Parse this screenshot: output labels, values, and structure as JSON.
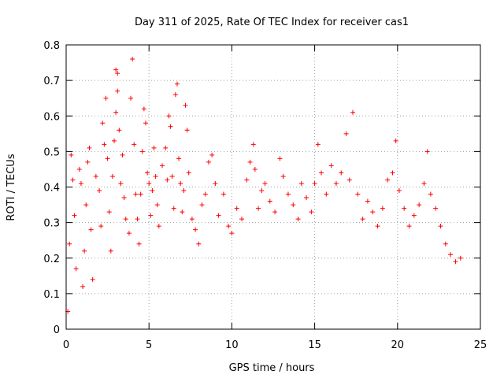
{
  "chart_data": {
    "type": "scatter",
    "title": "Day 311 of 2025, Rate Of TEC Index for receiver cas1",
    "xlabel": "GPS time / hours",
    "ylabel": "ROTI / TECUs",
    "xlim": [
      0,
      25
    ],
    "ylim": [
      0,
      0.8
    ],
    "xticks": [
      0,
      5,
      10,
      15,
      20,
      25
    ],
    "xtick_labels": [
      "0",
      "5",
      "10",
      "15",
      "20",
      "25"
    ],
    "yticks": [
      0,
      0.1,
      0.2,
      0.3,
      0.4,
      0.5,
      0.6,
      0.7,
      0.8
    ],
    "ytick_labels": [
      "0",
      "0.1",
      "0.2",
      "0.3",
      "0.4",
      "0.5",
      "0.6",
      "0.7",
      "0.8"
    ],
    "grid": true,
    "marker": "+",
    "color": "#ff0000",
    "series": [
      {
        "points": [
          [
            0.1,
            0.05
          ],
          [
            0.2,
            0.24
          ],
          [
            0.3,
            0.49
          ],
          [
            0.4,
            0.42
          ],
          [
            0.5,
            0.32
          ],
          [
            0.6,
            0.17
          ],
          [
            0.8,
            0.45
          ],
          [
            0.9,
            0.41
          ],
          [
            1.0,
            0.12
          ],
          [
            1.1,
            0.22
          ],
          [
            1.2,
            0.35
          ],
          [
            1.3,
            0.47
          ],
          [
            1.4,
            0.51
          ],
          [
            1.5,
            0.28
          ],
          [
            1.6,
            0.14
          ],
          [
            1.8,
            0.43
          ],
          [
            2.0,
            0.39
          ],
          [
            2.1,
            0.29
          ],
          [
            2.2,
            0.58
          ],
          [
            2.3,
            0.52
          ],
          [
            2.4,
            0.65
          ],
          [
            2.5,
            0.48
          ],
          [
            2.6,
            0.33
          ],
          [
            2.7,
            0.22
          ],
          [
            2.8,
            0.43
          ],
          [
            2.9,
            0.53
          ],
          [
            3.0,
            0.61
          ],
          [
            3.0,
            0.73
          ],
          [
            3.1,
            0.72
          ],
          [
            3.1,
            0.67
          ],
          [
            3.2,
            0.56
          ],
          [
            3.3,
            0.41
          ],
          [
            3.4,
            0.49
          ],
          [
            3.5,
            0.37
          ],
          [
            3.6,
            0.31
          ],
          [
            3.8,
            0.27
          ],
          [
            3.9,
            0.65
          ],
          [
            4.0,
            0.76
          ],
          [
            4.1,
            0.52
          ],
          [
            4.2,
            0.38
          ],
          [
            4.3,
            0.31
          ],
          [
            4.4,
            0.24
          ],
          [
            4.5,
            0.38
          ],
          [
            4.6,
            0.5
          ],
          [
            4.7,
            0.62
          ],
          [
            4.8,
            0.58
          ],
          [
            4.9,
            0.44
          ],
          [
            5.0,
            0.41
          ],
          [
            5.1,
            0.32
          ],
          [
            5.2,
            0.39
          ],
          [
            5.3,
            0.51
          ],
          [
            5.4,
            0.43
          ],
          [
            5.5,
            0.35
          ],
          [
            5.6,
            0.29
          ],
          [
            5.8,
            0.46
          ],
          [
            6.0,
            0.51
          ],
          [
            6.1,
            0.42
          ],
          [
            6.2,
            0.6
          ],
          [
            6.3,
            0.57
          ],
          [
            6.4,
            0.43
          ],
          [
            6.5,
            0.34
          ],
          [
            6.6,
            0.66
          ],
          [
            6.7,
            0.69
          ],
          [
            6.8,
            0.48
          ],
          [
            6.9,
            0.41
          ],
          [
            7.0,
            0.33
          ],
          [
            7.1,
            0.39
          ],
          [
            7.2,
            0.63
          ],
          [
            7.3,
            0.56
          ],
          [
            7.4,
            0.44
          ],
          [
            7.6,
            0.31
          ],
          [
            7.8,
            0.28
          ],
          [
            8.0,
            0.24
          ],
          [
            8.2,
            0.35
          ],
          [
            8.4,
            0.38
          ],
          [
            8.6,
            0.47
          ],
          [
            8.8,
            0.49
          ],
          [
            9.0,
            0.41
          ],
          [
            9.2,
            0.32
          ],
          [
            9.5,
            0.38
          ],
          [
            9.8,
            0.29
          ],
          [
            10.0,
            0.27
          ],
          [
            10.3,
            0.34
          ],
          [
            10.6,
            0.31
          ],
          [
            10.9,
            0.42
          ],
          [
            11.1,
            0.47
          ],
          [
            11.3,
            0.52
          ],
          [
            11.4,
            0.45
          ],
          [
            11.6,
            0.34
          ],
          [
            11.8,
            0.39
          ],
          [
            12.0,
            0.41
          ],
          [
            12.3,
            0.36
          ],
          [
            12.6,
            0.33
          ],
          [
            12.9,
            0.48
          ],
          [
            13.1,
            0.43
          ],
          [
            13.4,
            0.38
          ],
          [
            13.7,
            0.35
          ],
          [
            14.0,
            0.31
          ],
          [
            14.2,
            0.41
          ],
          [
            14.5,
            0.37
          ],
          [
            14.8,
            0.33
          ],
          [
            15.0,
            0.41
          ],
          [
            15.2,
            0.52
          ],
          [
            15.4,
            0.44
          ],
          [
            15.7,
            0.38
          ],
          [
            16.0,
            0.46
          ],
          [
            16.3,
            0.41
          ],
          [
            16.6,
            0.44
          ],
          [
            16.9,
            0.55
          ],
          [
            17.1,
            0.42
          ],
          [
            17.3,
            0.61
          ],
          [
            17.6,
            0.38
          ],
          [
            17.9,
            0.31
          ],
          [
            18.2,
            0.36
          ],
          [
            18.5,
            0.33
          ],
          [
            18.8,
            0.29
          ],
          [
            19.1,
            0.34
          ],
          [
            19.4,
            0.42
          ],
          [
            19.7,
            0.44
          ],
          [
            19.9,
            0.53
          ],
          [
            20.1,
            0.39
          ],
          [
            20.4,
            0.34
          ],
          [
            20.7,
            0.29
          ],
          [
            21.0,
            0.32
          ],
          [
            21.3,
            0.35
          ],
          [
            21.6,
            0.41
          ],
          [
            21.8,
            0.5
          ],
          [
            22.0,
            0.38
          ],
          [
            22.3,
            0.34
          ],
          [
            22.6,
            0.29
          ],
          [
            22.9,
            0.24
          ],
          [
            23.2,
            0.21
          ],
          [
            23.5,
            0.19
          ],
          [
            23.8,
            0.2
          ]
        ]
      }
    ]
  }
}
